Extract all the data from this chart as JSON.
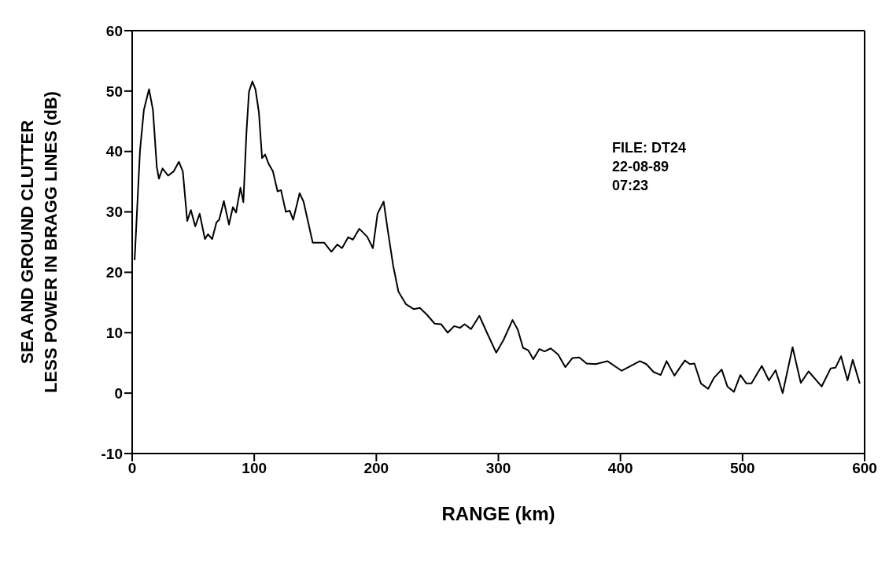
{
  "chart_data": {
    "type": "line",
    "xlabel": "RANGE (km)",
    "ylabel": "SEA AND GROUND CLUTTER\nLESS POWER IN BRAGG LINES (dB)",
    "annotations": [
      "FILE: DT24",
      "22-08-89",
      "07:23"
    ],
    "xlim": [
      0,
      600
    ],
    "xticks": [
      0,
      100,
      200,
      300,
      400,
      500,
      600
    ],
    "ylim": [
      -10,
      60
    ],
    "yticks": [
      -10,
      0,
      10,
      20,
      30,
      40,
      50,
      60
    ],
    "legend": false,
    "marker": "none",
    "line_style": "solid",
    "series": [
      {
        "color": "#000000",
        "x": [
          2,
          6.4,
          9.6,
          13.8,
          17,
          20.2,
          21.9,
          24.9,
          29.4,
          34,
          38.3,
          41.5,
          45.1,
          48.1,
          51.7,
          55.3,
          59.6,
          62.1,
          65.5,
          69.1,
          71.3,
          75.1,
          79.3,
          82.5,
          85.1,
          88.7,
          91.1,
          93.6,
          95.7,
          98.5,
          101,
          103.8,
          106.4,
          108.9,
          111.7,
          115.3,
          119.1,
          121.9,
          125.9,
          129.1,
          131.9,
          137.2,
          140.4,
          147.9,
          157.4,
          163.2,
          168,
          171.9,
          177,
          180.8,
          186.1,
          192.5,
          197.2,
          201,
          206,
          209.5,
          213.8,
          218.1,
          224.4,
          230.8,
          235.7,
          241.4,
          247.8,
          253.2,
          258.5,
          263.8,
          268.5,
          272.3,
          277.6,
          284.4,
          290.4,
          298.2,
          304.2,
          311.6,
          315.9,
          320.2,
          324.4,
          328.6,
          333.6,
          337.8,
          342.9,
          348.9,
          354.8,
          360.6,
          366.3,
          372.3,
          379.7,
          389.3,
          401,
          408.4,
          415.9,
          421.2,
          427.1,
          432.9,
          437.8,
          444.2,
          452.7,
          456.9,
          460.6,
          465.9,
          471.8,
          476.5,
          482.9,
          487.6,
          492.9,
          498.2,
          503.1,
          507.3,
          515.8,
          521.6,
          527.1,
          532.9,
          541,
          547.7,
          554.1,
          564.8,
          572.2,
          576.1,
          580.7,
          586,
          590.3,
          596
        ],
        "values": [
          22,
          40.1,
          46.9,
          50.3,
          46.9,
          37.4,
          35.5,
          37.2,
          36,
          36.7,
          38.3,
          36.7,
          28.5,
          30.3,
          27.6,
          29.7,
          25.5,
          26.3,
          25.5,
          28.3,
          28.7,
          31.8,
          27.9,
          30.8,
          29.9,
          34,
          31.6,
          43.1,
          49.9,
          51.6,
          50.3,
          46.5,
          38.9,
          39.5,
          38,
          36.7,
          33.4,
          33.6,
          30,
          30.2,
          28.7,
          33.1,
          31.7,
          24.9,
          24.9,
          23.4,
          24.6,
          24,
          25.8,
          25.4,
          27.2,
          25.9,
          24,
          29.7,
          31.7,
          26.8,
          21.1,
          16.8,
          14.7,
          13.9,
          14.1,
          13,
          11.5,
          11.4,
          10,
          11.1,
          10.8,
          11.4,
          10.6,
          12.8,
          10.1,
          6.7,
          8.8,
          12.1,
          10.5,
          7.5,
          7.1,
          5.6,
          7.3,
          6.9,
          7.4,
          6.4,
          4.3,
          5.8,
          5.9,
          4.9,
          4.8,
          5.3,
          3.7,
          4.5,
          5.3,
          4.8,
          3.5,
          3,
          5.3,
          2.9,
          5.4,
          4.8,
          4.9,
          1.6,
          0.7,
          2.5,
          3.9,
          1.1,
          0.2,
          3,
          1.6,
          1.6,
          4.5,
          2.1,
          3.8,
          0,
          7.6,
          1.7,
          3.6,
          1.1,
          4.1,
          4.2,
          6.1,
          2.1,
          5.5,
          1.6
        ]
      }
    ]
  }
}
